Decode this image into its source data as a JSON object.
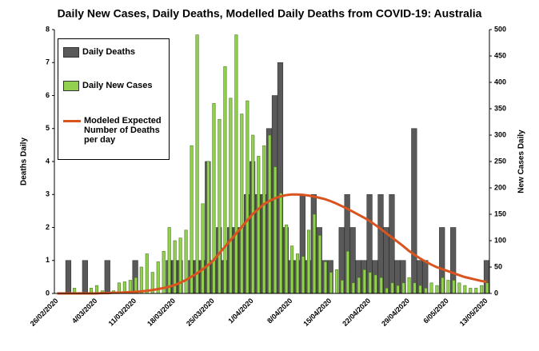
{
  "chart_data": {
    "type": "bar",
    "title": "Daily New Cases, Daily Deaths, Modelled Daily Deaths from COVID-19: Australia",
    "y_label": "Deaths Daily",
    "y2_label": "New Cases Daily",
    "categories": [
      "26/02/2020",
      null,
      null,
      null,
      null,
      null,
      null,
      "4/03/2020",
      null,
      null,
      null,
      null,
      null,
      null,
      "11/03/2020",
      null,
      null,
      null,
      null,
      null,
      null,
      "18/03/2020",
      null,
      null,
      null,
      null,
      null,
      null,
      "25/03/2020",
      null,
      null,
      null,
      null,
      null,
      null,
      "1/04/2020",
      null,
      null,
      null,
      null,
      null,
      null,
      "8/04/2020",
      null,
      null,
      null,
      null,
      null,
      null,
      "15/04/2020",
      null,
      null,
      null,
      null,
      null,
      null,
      "22/04/2020",
      null,
      null,
      null,
      null,
      null,
      null,
      "29/04/2020",
      null,
      null,
      null,
      null,
      null,
      null,
      "6/05/2020",
      null,
      null,
      null,
      null,
      null,
      null,
      "13/05/2020"
    ],
    "series": [
      {
        "name": "Daily Deaths",
        "type": "bar",
        "color": "#595959",
        "values": [
          0,
          0,
          1,
          0,
          0,
          1,
          0,
          0,
          0,
          1,
          0,
          0,
          0,
          0,
          1,
          0,
          0,
          0,
          0,
          0,
          1,
          1,
          1,
          0,
          1,
          1,
          1,
          4,
          1,
          2,
          1,
          2,
          2,
          2,
          3,
          4,
          3,
          3,
          5,
          6,
          7,
          2,
          1,
          1,
          3,
          1,
          3,
          2,
          1,
          1,
          0,
          2,
          3,
          2,
          1,
          1,
          3,
          1,
          3,
          2,
          3,
          1,
          1,
          0,
          5,
          1,
          1,
          0,
          0,
          2,
          0,
          2,
          0,
          0,
          0,
          0,
          0,
          1
        ]
      },
      {
        "name": "Daily New Cases",
        "type": "bar",
        "axis": "y2",
        "color": "#92d050",
        "values": [
          0,
          0,
          0,
          10,
          2,
          0,
          10,
          15,
          5,
          2,
          5,
          20,
          22,
          25,
          30,
          50,
          75,
          40,
          60,
          80,
          125,
          100,
          105,
          120,
          280,
          490,
          170,
          250,
          360,
          330,
          430,
          370,
          490,
          340,
          365,
          300,
          260,
          280,
          300,
          240,
          190,
          130,
          90,
          75,
          70,
          120,
          150,
          110,
          60,
          40,
          45,
          25,
          80,
          20,
          30,
          45,
          40,
          35,
          30,
          10,
          20,
          15,
          20,
          30,
          20,
          15,
          10,
          20,
          15,
          30,
          25,
          25,
          20,
          15,
          10,
          10,
          15,
          20
        ]
      },
      {
        "name": "Modeled Expected Number of Deaths per day",
        "type": "line",
        "color": "#d9541e",
        "values": [
          0,
          0,
          0,
          0,
          0,
          0,
          0,
          0,
          0.01,
          0.01,
          0.02,
          0.02,
          0.03,
          0.04,
          0.05,
          0.06,
          0.08,
          0.1,
          0.13,
          0.16,
          0.2,
          0.25,
          0.32,
          0.4,
          0.5,
          0.6,
          0.72,
          0.85,
          1.0,
          1.2,
          1.4,
          1.6,
          1.8,
          2.0,
          2.2,
          2.4,
          2.55,
          2.7,
          2.8,
          2.88,
          2.94,
          2.98,
          3.0,
          3.0,
          2.99,
          2.97,
          2.94,
          2.9,
          2.86,
          2.8,
          2.73,
          2.65,
          2.57,
          2.48,
          2.39,
          2.3,
          2.2,
          2.08,
          1.96,
          1.83,
          1.7,
          1.57,
          1.44,
          1.3,
          1.18,
          1.07,
          0.97,
          0.88,
          0.8,
          0.74,
          0.68,
          0.62,
          0.56,
          0.5,
          0.46,
          0.42,
          0.38,
          0.35
        ]
      }
    ],
    "ylim": [
      0,
      8
    ],
    "yticks": [
      0,
      1,
      2,
      3,
      4,
      5,
      6,
      7,
      8
    ],
    "y2lim": [
      0,
      500
    ],
    "y2ticks": [
      0,
      50,
      100,
      150,
      200,
      250,
      300,
      350,
      400,
      450,
      500
    ],
    "grid": false,
    "legend": "top-left"
  }
}
